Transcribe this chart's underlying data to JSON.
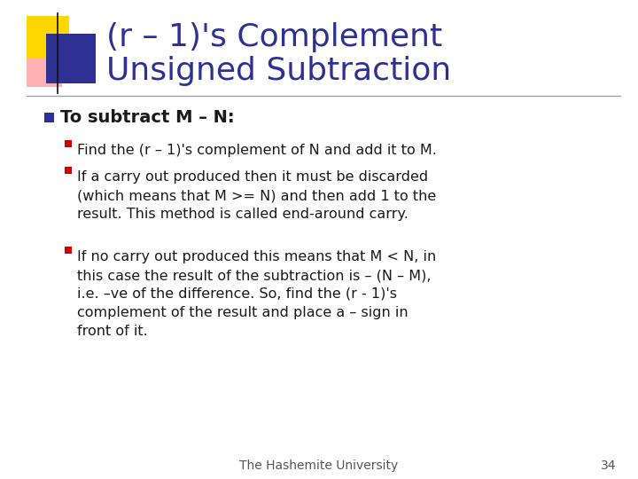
{
  "title_line1": "(r – 1)'s Complement",
  "title_line2": "Unsigned Subtraction",
  "title_color": "#2E3192",
  "bg_color": "#FFFFFF",
  "bullet1": "To subtract M – N:",
  "bullet1_color": "#1a1a1a",
  "sub_bullet1": "Find the (r – 1)'s complement of N and add it to M.",
  "sub_bullet2": "If a carry out produced then it must be discarded\n(which means that M >= N) and then add 1 to the\nresult. This method is called end-around carry.",
  "sub_bullet3": "If no carry out produced this means that M < N, in\nthis case the result of the subtraction is – (N – M),\ni.e. –ve of the difference. So, find the (r - 1)'s\ncomplement of the result and place a – sign in\nfront of it.",
  "sub_bullet_color": "#1a1a1a",
  "bullet_square_color": "#2E3192",
  "sub_bullet_square_color": "#CC0000",
  "footer_text": "The Hashemite University",
  "footer_number": "34",
  "footer_color": "#555555",
  "decoration_yellow": "#FFD700",
  "decoration_blue": "#2E3192",
  "decoration_pink": "#FF8080",
  "line_color": "#999999"
}
